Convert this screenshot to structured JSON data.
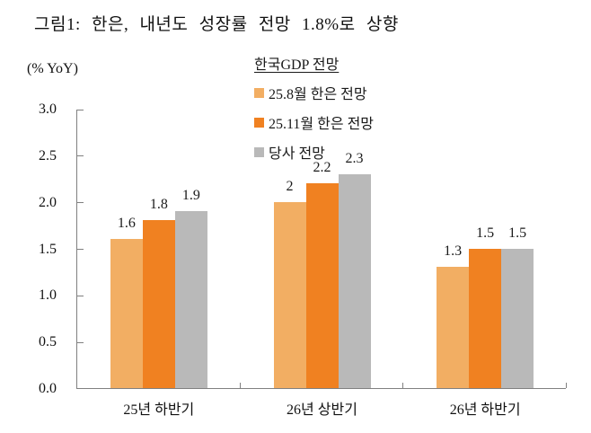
{
  "title": "그림1: 한은, 내년도 성장률 전망 1.8%로 상향",
  "chart_data": {
    "type": "bar",
    "title": "그림1: 한은, 내년도 성장률 전망 1.8%로 상향",
    "ylabel": "(% YoY)",
    "xlabel": "",
    "categories": [
      "25년 하반기",
      "26년 상반기",
      "26년 하반기"
    ],
    "series": [
      {
        "name": "25.8월 한은 전망",
        "color": "#F2AE63",
        "values": [
          1.6,
          2.0,
          1.3
        ],
        "labels": [
          "1.6",
          "2",
          "1.3"
        ]
      },
      {
        "name": "25.11월 한은 전망",
        "color": "#F08121",
        "values": [
          1.8,
          2.2,
          1.5
        ],
        "labels": [
          "1.8",
          "2.2",
          "1.5"
        ]
      },
      {
        "name": "당사 전망",
        "color": "#B9B9B9",
        "values": [
          1.9,
          2.3,
          1.5
        ],
        "labels": [
          "1.9",
          "2.3",
          "1.5"
        ]
      }
    ],
    "legend": {
      "title": "한국GDP 전망",
      "position": "top-center"
    },
    "ylim": [
      0.0,
      3.0
    ],
    "yticks": [
      "0.0",
      "0.5",
      "1.0",
      "1.5",
      "2.0",
      "2.5",
      "3.0"
    ],
    "grid": false
  },
  "colors": {
    "axis": "#808080",
    "text": "#111111"
  }
}
